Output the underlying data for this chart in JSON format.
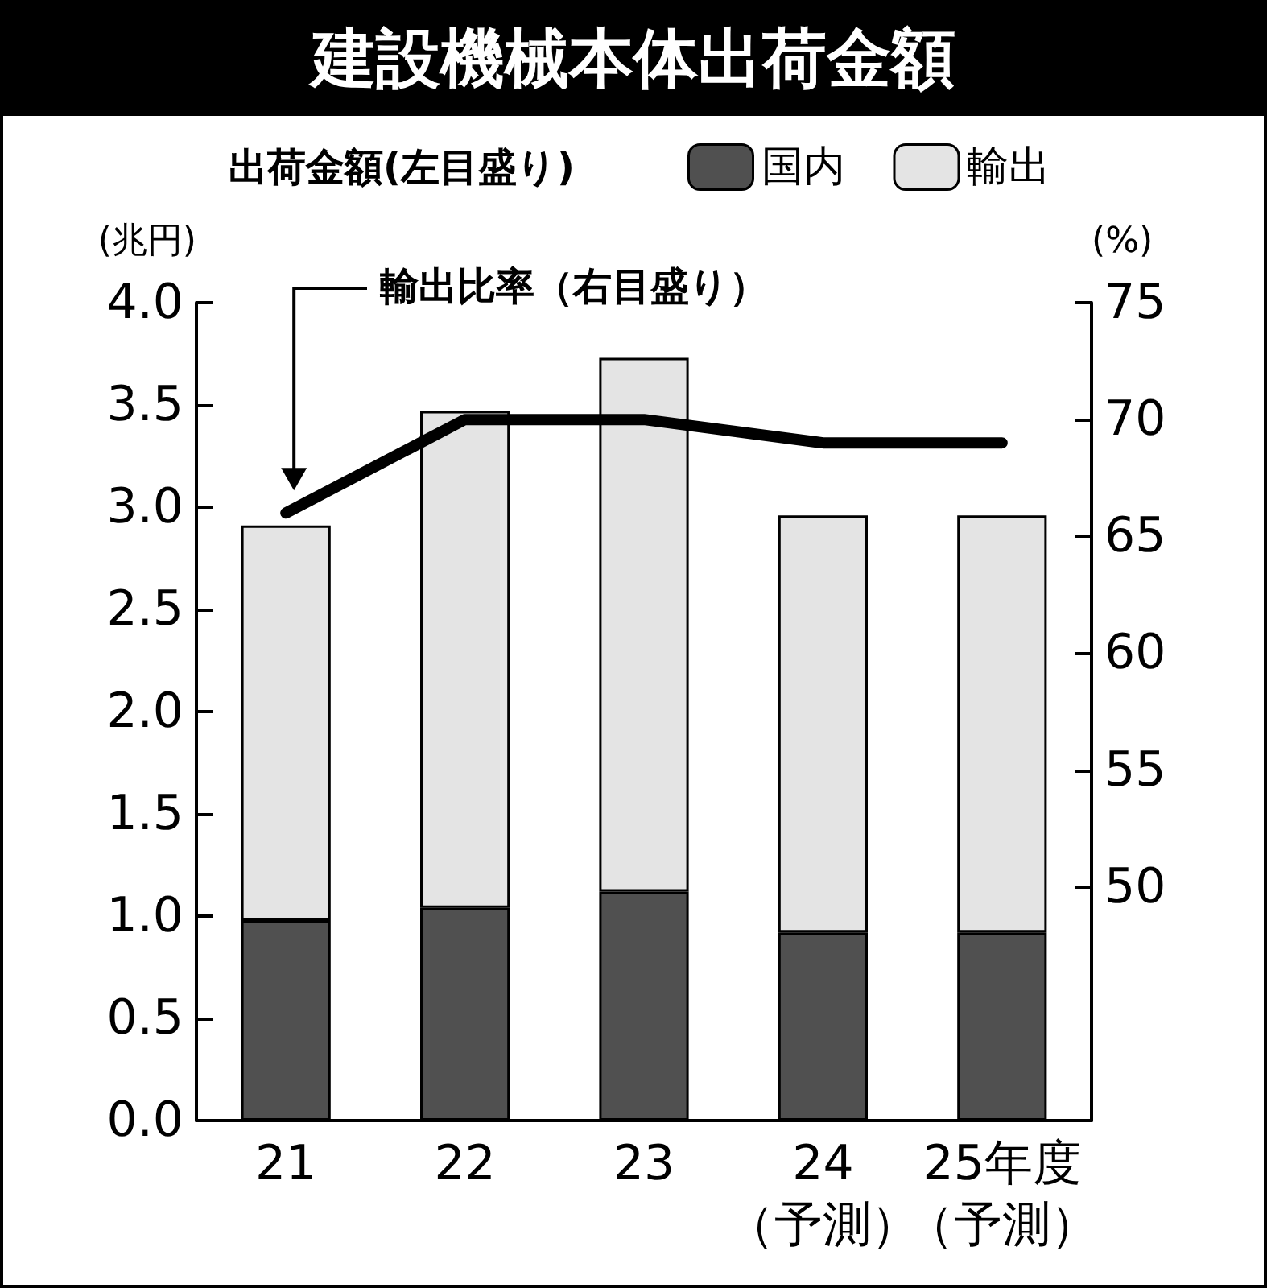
{
  "chart_data": {
    "type": "bar",
    "title": "建設機械本体出荷金額",
    "ylabel": "(兆円)",
    "y2label": "(%)",
    "legend_title": "出荷金額(左目盛り)",
    "annotations": [
      "輸出比率（右目盛り）"
    ],
    "categories": [
      "21",
      "22",
      "23",
      "24（予測）",
      "25年度（予測）"
    ],
    "stacked": true,
    "legend": "top",
    "series": [
      {
        "name": "国内",
        "color": "#505050",
        "values": [
          0.98,
          1.04,
          1.12,
          0.92,
          0.92
        ]
      },
      {
        "name": "輸出",
        "color": "#e4e4e4",
        "values": [
          1.93,
          2.43,
          2.61,
          2.04,
          2.04
        ]
      },
      {
        "type": "line",
        "axis": "y2",
        "color": "#000000",
        "values": [
          66,
          70,
          70,
          69,
          69
        ]
      }
    ],
    "ylim": [
      0,
      4
    ],
    "yticks": [
      {
        "value": 0,
        "label": "0.0"
      },
      {
        "value": 0.5,
        "label": "0.5"
      },
      {
        "value": 1,
        "label": "1.0"
      },
      {
        "value": 1.5,
        "label": "1.5"
      },
      {
        "value": 2,
        "label": "2.0"
      },
      {
        "value": 2.5,
        "label": "2.5"
      },
      {
        "value": 3,
        "label": "3.0"
      },
      {
        "value": 3.5,
        "label": "3.5"
      },
      {
        "value": 4,
        "label": "4.0"
      }
    ],
    "y2lim": [
      40,
      75
    ],
    "y2ticks": [
      50,
      55,
      60,
      65,
      70,
      75
    ],
    "line_style": "solid",
    "grid": false
  }
}
